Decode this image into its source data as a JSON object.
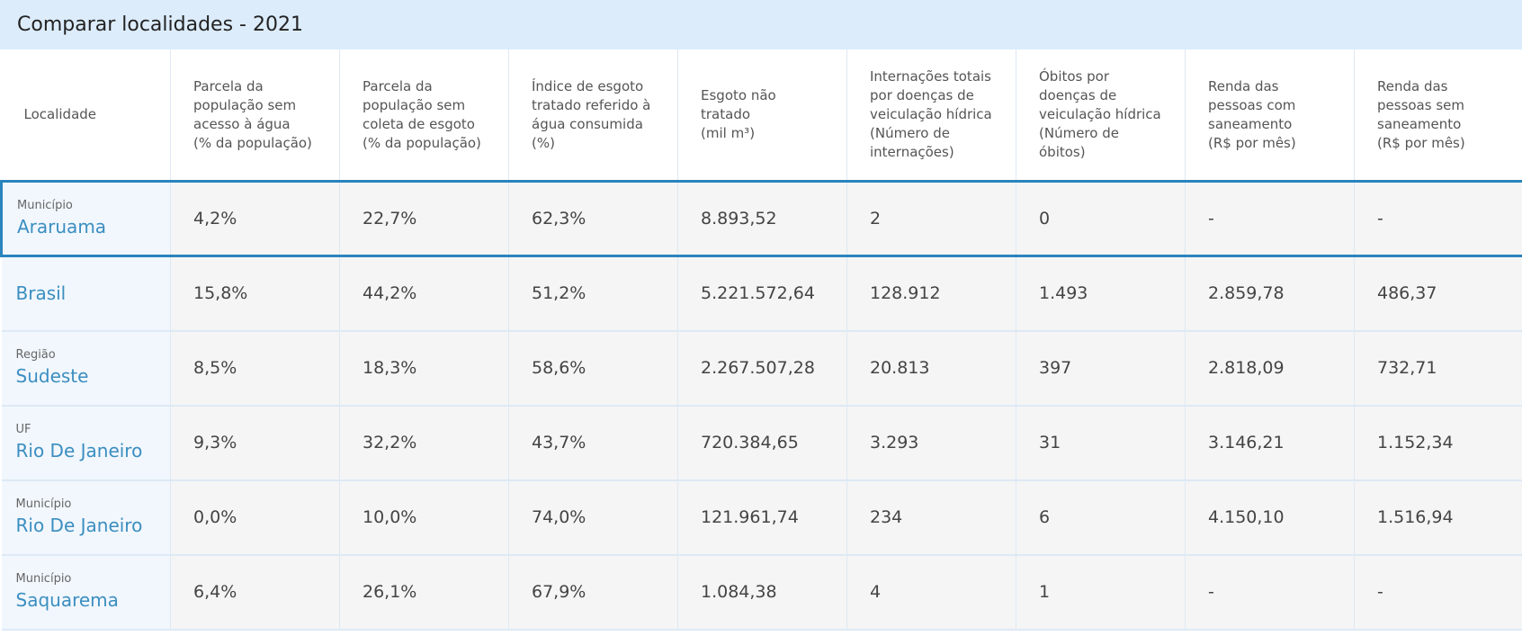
{
  "title": "Comparar localidades - 2021",
  "headers": [
    {
      "lines": [
        "Localidade"
      ]
    },
    {
      "lines": [
        "Parcela da",
        "população sem",
        "acesso à água",
        "(% da população)"
      ]
    },
    {
      "lines": [
        "Parcela da",
        "população sem",
        "coleta de esgoto",
        "(% da população)"
      ]
    },
    {
      "lines": [
        "Índice de esgoto",
        "tratado referido à",
        "água consumida",
        "(%)"
      ]
    },
    {
      "lines": [
        "Esgoto não",
        "tratado",
        "(mil m³)"
      ]
    },
    {
      "lines": [
        "Internações totais",
        "por doenças de",
        "veiculação hídrica",
        "(Número de",
        "internações)"
      ]
    },
    {
      "lines": [
        "Óbitos por",
        "doenças de",
        "veiculação hídrica",
        "(Número de",
        "óbitos)"
      ]
    },
    {
      "lines": [
        "Renda das",
        "pessoas com",
        "saneamento",
        "(R$ por mês)"
      ]
    },
    {
      "lines": [
        "Renda das",
        "pessoas sem",
        "saneamento",
        "(R$ por mês)"
      ]
    }
  ],
  "rows": [
    {
      "type": "Município",
      "name": "Araruama",
      "highlight": true,
      "values": [
        "4,2%",
        "22,7%",
        "62,3%",
        "8.893,52",
        "2",
        "0",
        "-",
        "-"
      ]
    },
    {
      "type": "",
      "name": "Brasil",
      "highlight": false,
      "values": [
        "15,8%",
        "44,2%",
        "51,2%",
        "5.221.572,64",
        "128.912",
        "1.493",
        "2.859,78",
        "486,37"
      ]
    },
    {
      "type": "Região",
      "name": "Sudeste",
      "highlight": false,
      "values": [
        "8,5%",
        "18,3%",
        "58,6%",
        "2.267.507,28",
        "20.813",
        "397",
        "2.818,09",
        "732,71"
      ]
    },
    {
      "type": "UF",
      "name": "Rio De Janeiro",
      "highlight": false,
      "values": [
        "9,3%",
        "32,2%",
        "43,7%",
        "720.384,65",
        "3.293",
        "31",
        "3.146,21",
        "1.152,34"
      ]
    },
    {
      "type": "Município",
      "name": "Rio De Janeiro",
      "highlight": false,
      "values": [
        "0,0%",
        "10,0%",
        "74,0%",
        "121.961,74",
        "234",
        "6",
        "4.150,10",
        "1.516,94"
      ]
    },
    {
      "type": "Município",
      "name": "Saquarema",
      "highlight": false,
      "values": [
        "6,4%",
        "26,1%",
        "67,9%",
        "1.084,38",
        "4",
        "1",
        "-",
        "-"
      ]
    }
  ]
}
